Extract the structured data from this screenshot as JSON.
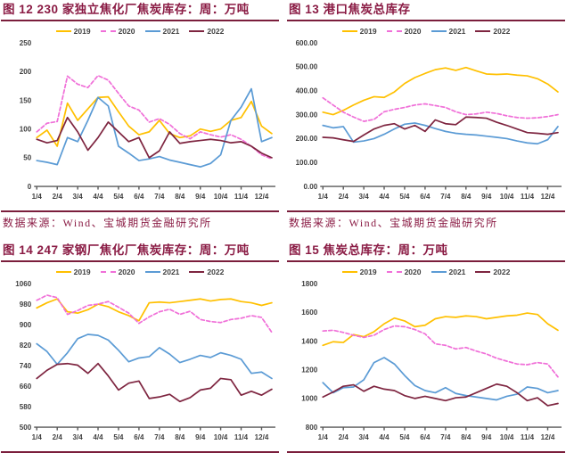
{
  "source_note": "数据来源：Wind、宝城期货金融研究所",
  "colors": {
    "title": "#8A1B44",
    "divider": "#7B1E3C",
    "axis_text": "#404040",
    "axis_line": "#595959",
    "s2019": "#FFC000",
    "s2020": "#F06FD8",
    "s2021": "#5B9BD5",
    "s2022": "#7E2540"
  },
  "charts": [
    {
      "title": "图 12 230 家独立焦化厂焦炭库存：周：万吨",
      "show_source": true,
      "chart_data": {
        "type": "line",
        "x_ticks": [
          "1/4",
          "2/4",
          "3/4",
          "4/4",
          "5/4",
          "6/4",
          "7/4",
          "8/4",
          "9/4",
          "10/4",
          "11/4",
          "12/4"
        ],
        "ylim": [
          0,
          250
        ],
        "yticks": [
          0,
          50,
          100,
          150,
          200,
          250
        ],
        "ytick_labels": [
          "0",
          "50",
          "100",
          "150",
          "200",
          "250"
        ],
        "legend_position": "top",
        "grid": false,
        "series": [
          {
            "name": "2019",
            "color": "#FFC000",
            "dashed": false,
            "values": [
              85,
              98,
              70,
              145,
              115,
              135,
              155,
              156,
              130,
              105,
              90,
              95,
              115,
              92,
              85,
              88,
              100,
              96,
              100,
              115,
              120,
              148,
              105,
              92
            ]
          },
          {
            "name": "2020",
            "color": "#F06FD8",
            "dashed": true,
            "values": [
              95,
              110,
              113,
              192,
              178,
              172,
              193,
              185,
              162,
              140,
              133,
              112,
              118,
              108,
              92,
              83,
              95,
              90,
              86,
              90,
              82,
              70,
              55,
              48
            ]
          },
          {
            "name": "2021",
            "color": "#5B9BD5",
            "dashed": false,
            "values": [
              45,
              42,
              38,
              85,
              78,
              115,
              155,
              140,
              70,
              58,
              45,
              48,
              52,
              46,
              42,
              38,
              34,
              40,
              55,
              115,
              138,
              170,
              78,
              85
            ]
          },
          {
            "name": "2022",
            "color": "#7E2540",
            "dashed": false,
            "values": [
              82,
              76,
              80,
              120,
              95,
              63,
              85,
              112,
              95,
              78,
              85,
              50,
              62,
              95,
              75,
              78,
              80,
              82,
              80,
              76,
              78,
              70,
              58,
              50
            ]
          }
        ]
      }
    },
    {
      "title": "图 13 港口焦炭总库存",
      "show_source": true,
      "chart_data": {
        "type": "line",
        "x_ticks": [
          "1/4",
          "2/4",
          "3/4",
          "4/4",
          "5/4",
          "6/4",
          "7/4",
          "8/4",
          "9/4",
          "10/4",
          "11/4",
          "12/4"
        ],
        "ylim": [
          0,
          600
        ],
        "yticks": [
          0,
          100,
          200,
          300,
          400,
          500,
          600
        ],
        "ytick_labels": [
          "0.00",
          "100.00",
          "200.00",
          "300.00",
          "400.00",
          "500.00",
          "600.00"
        ],
        "legend_position": "top",
        "grid": false,
        "series": [
          {
            "name": "2019",
            "color": "#FFC000",
            "dashed": false,
            "values": [
              310,
              300,
              318,
              340,
              360,
              375,
              372,
              395,
              430,
              455,
              472,
              488,
              495,
              485,
              497,
              483,
              470,
              468,
              470,
              465,
              462,
              450,
              428,
              395
            ]
          },
          {
            "name": "2020",
            "color": "#F06FD8",
            "dashed": true,
            "values": [
              370,
              340,
              310,
              290,
              272,
              280,
              312,
              322,
              330,
              340,
              345,
              338,
              330,
              312,
              300,
              303,
              310,
              305,
              295,
              288,
              285,
              287,
              292,
              300
            ]
          },
          {
            "name": "2021",
            "color": "#5B9BD5",
            "dashed": false,
            "values": [
              255,
              245,
              250,
              185,
              190,
              200,
              218,
              240,
              260,
              265,
              255,
              242,
              230,
              222,
              218,
              215,
              210,
              205,
              200,
              190,
              182,
              178,
              195,
              250
            ]
          },
          {
            "name": "2022",
            "color": "#7E2540",
            "dashed": false,
            "values": [
              205,
              203,
              195,
              188,
              215,
              240,
              255,
              262,
              240,
              255,
              230,
              278,
              262,
              258,
              290,
              288,
              285,
              268,
              255,
              240,
              225,
              222,
              218,
              225
            ]
          }
        ]
      }
    },
    {
      "title": "图 14 247 家钢厂焦化厂焦炭库存：周：万吨",
      "show_source": false,
      "chart_data": {
        "type": "line",
        "x_ticks": [
          "1/4",
          "2/4",
          "3/4",
          "4/4",
          "5/4",
          "6/4",
          "7/4",
          "8/4",
          "9/4",
          "10/4",
          "11/4",
          "12/4"
        ],
        "ylim": [
          500,
          1060
        ],
        "yticks": [
          500,
          580,
          660,
          740,
          820,
          900,
          980,
          1060
        ],
        "ytick_labels": [
          "500",
          "580",
          "660",
          "740",
          "820",
          "900",
          "980",
          "1060"
        ],
        "legend_position": "top",
        "grid": false,
        "series": [
          {
            "name": "2019",
            "color": "#FFC000",
            "dashed": false,
            "values": [
              965,
              985,
              1000,
              950,
              945,
              958,
              980,
              970,
              950,
              935,
              915,
              985,
              988,
              985,
              990,
              995,
              1000,
              992,
              998,
              1000,
              990,
              985,
              975,
              985
            ]
          },
          {
            "name": "2020",
            "color": "#F06FD8",
            "dashed": true,
            "values": [
              995,
              1015,
              1005,
              940,
              955,
              975,
              980,
              990,
              968,
              945,
              905,
              930,
              950,
              960,
              940,
              952,
              920,
              912,
              908,
              920,
              925,
              935,
              928,
              870
            ]
          },
          {
            "name": "2021",
            "color": "#5B9BD5",
            "dashed": false,
            "values": [
              825,
              795,
              745,
              790,
              845,
              862,
              858,
              840,
              800,
              755,
              770,
              775,
              810,
              785,
              752,
              765,
              780,
              772,
              790,
              780,
              765,
              710,
              715,
              690
            ]
          },
          {
            "name": "2022",
            "color": "#7E2540",
            "dashed": false,
            "values": [
              690,
              722,
              745,
              748,
              742,
              710,
              748,
              700,
              645,
              672,
              680,
              612,
              618,
              628,
              600,
              615,
              645,
              652,
              690,
              685,
              625,
              640,
              625,
              648
            ]
          }
        ]
      }
    },
    {
      "title": "图 15 焦炭总库存：周：万吨",
      "show_source": false,
      "chart_data": {
        "type": "line",
        "x_ticks": [
          "1/4",
          "2/4",
          "3/4",
          "4/4",
          "5/4",
          "6/4",
          "7/4",
          "8/4",
          "9/4",
          "10/4",
          "11/4",
          "12/4"
        ],
        "ylim": [
          800,
          1800
        ],
        "yticks": [
          800,
          1000,
          1200,
          1400,
          1600,
          1800
        ],
        "ytick_labels": [
          "800",
          "1000",
          "1200",
          "1400",
          "1600",
          "1800"
        ],
        "legend_position": "top",
        "grid": false,
        "series": [
          {
            "name": "2019",
            "color": "#FFC000",
            "dashed": false,
            "values": [
              1370,
              1395,
              1390,
              1445,
              1430,
              1465,
              1520,
              1560,
              1540,
              1500,
              1510,
              1555,
              1570,
              1565,
              1575,
              1570,
              1555,
              1565,
              1575,
              1580,
              1595,
              1585,
              1520,
              1475
            ]
          },
          {
            "name": "2020",
            "color": "#F06FD8",
            "dashed": true,
            "values": [
              1470,
              1475,
              1460,
              1440,
              1425,
              1440,
              1480,
              1505,
              1500,
              1480,
              1450,
              1380,
              1370,
              1345,
              1355,
              1330,
              1310,
              1280,
              1260,
              1240,
              1235,
              1250,
              1240,
              1150
            ]
          },
          {
            "name": "2021",
            "color": "#5B9BD5",
            "dashed": false,
            "values": [
              1110,
              1040,
              1075,
              1080,
              1130,
              1250,
              1285,
              1240,
              1160,
              1090,
              1055,
              1040,
              1075,
              1035,
              1020,
              1010,
              1000,
              990,
              1015,
              1030,
              1080,
              1070,
              1040,
              1055
            ]
          },
          {
            "name": "2022",
            "color": "#7E2540",
            "dashed": false,
            "values": [
              1010,
              1045,
              1085,
              1095,
              1050,
              1085,
              1065,
              1055,
              1020,
              1000,
              1015,
              1000,
              985,
              1005,
              1010,
              1040,
              1070,
              1100,
              1085,
              1040,
              985,
              1005,
              950,
              965
            ]
          }
        ]
      }
    }
  ]
}
